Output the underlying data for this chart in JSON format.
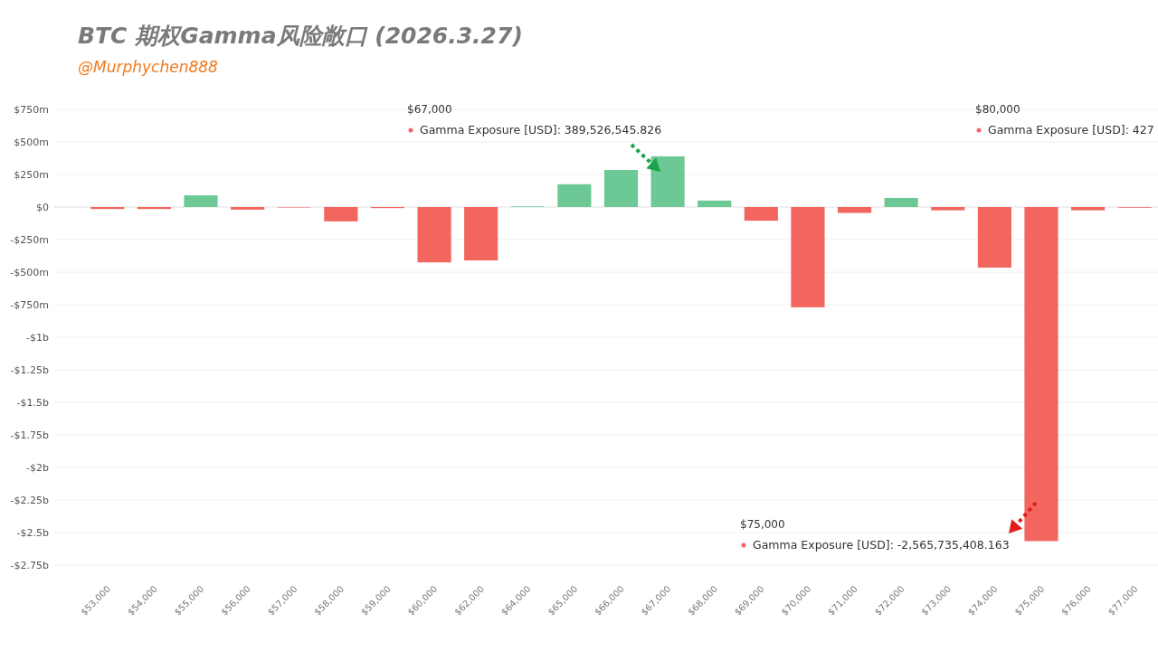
{
  "chart_data": {
    "type": "bar",
    "title": "BTC 期权Gamma风险敞口 (2026.3.27)",
    "subtitle": "@Murphychen888",
    "categories": [
      "$53,000",
      "$54,000",
      "$55,000",
      "$56,000",
      "$57,000",
      "$58,000",
      "$59,000",
      "$60,000",
      "$62,000",
      "$64,000",
      "$65,000",
      "$66,000",
      "$67,000",
      "$68,000",
      "$69,000",
      "$70,000",
      "$71,000",
      "$72,000",
      "$73,000",
      "$74,000",
      "$75,000",
      "$76,000",
      "$77,000"
    ],
    "values": [
      -15000000,
      -15000000,
      90000000,
      -20000000,
      0,
      -110000000,
      -8000000,
      -425000000,
      -410000000,
      5000000,
      175000000,
      285000000,
      389526545.826,
      50000000,
      -105000000,
      -770000000,
      -45000000,
      70000000,
      -25000000,
      -465000000,
      -2565735408.163,
      -25000000,
      -5000000
    ],
    "colors": [
      "#f2665f",
      "#f2665f",
      "#6cc995",
      "#f2665f",
      "#f2665f",
      "#f2665f",
      "#f2665f",
      "#f2665f",
      "#f2665f",
      "#6cc995",
      "#6cc995",
      "#6cc995",
      "#6cc995",
      "#6cc995",
      "#f2665f",
      "#f2665f",
      "#f2665f",
      "#6cc995",
      "#f2665f",
      "#f2665f",
      "#f2665f",
      "#f2665f",
      "#f2665f"
    ],
    "ylim": [
      -2750000000,
      750000000
    ],
    "yticks": [
      {
        "value": 750000000,
        "label": "$750m"
      },
      {
        "value": 500000000,
        "label": "$500m"
      },
      {
        "value": 250000000,
        "label": "$250m"
      },
      {
        "value": 0,
        "label": "$0"
      },
      {
        "value": -250000000,
        "label": "-$250m"
      },
      {
        "value": -500000000,
        "label": "-$500m"
      },
      {
        "value": -750000000,
        "label": "-$750m"
      },
      {
        "value": -1000000000,
        "label": "-$1b"
      },
      {
        "value": -1250000000,
        "label": "-$1.25b"
      },
      {
        "value": -1500000000,
        "label": "-$1.5b"
      },
      {
        "value": -1750000000,
        "label": "-$1.75b"
      },
      {
        "value": -2000000000,
        "label": "-$2b"
      },
      {
        "value": -2250000000,
        "label": "-$2.25b"
      },
      {
        "value": -2500000000,
        "label": "-$2.5b"
      },
      {
        "value": -2750000000,
        "label": "-$2.75b"
      }
    ],
    "grid": "y",
    "annotations": [
      "$67,000",
      "Gamma Exposure [USD]: 389,526,545.826",
      "$75,000",
      "Gamma Exposure [USD]: -2,565,735,408.163",
      "$80,000",
      "Gamma Exposure [USD]: 427"
    ]
  }
}
